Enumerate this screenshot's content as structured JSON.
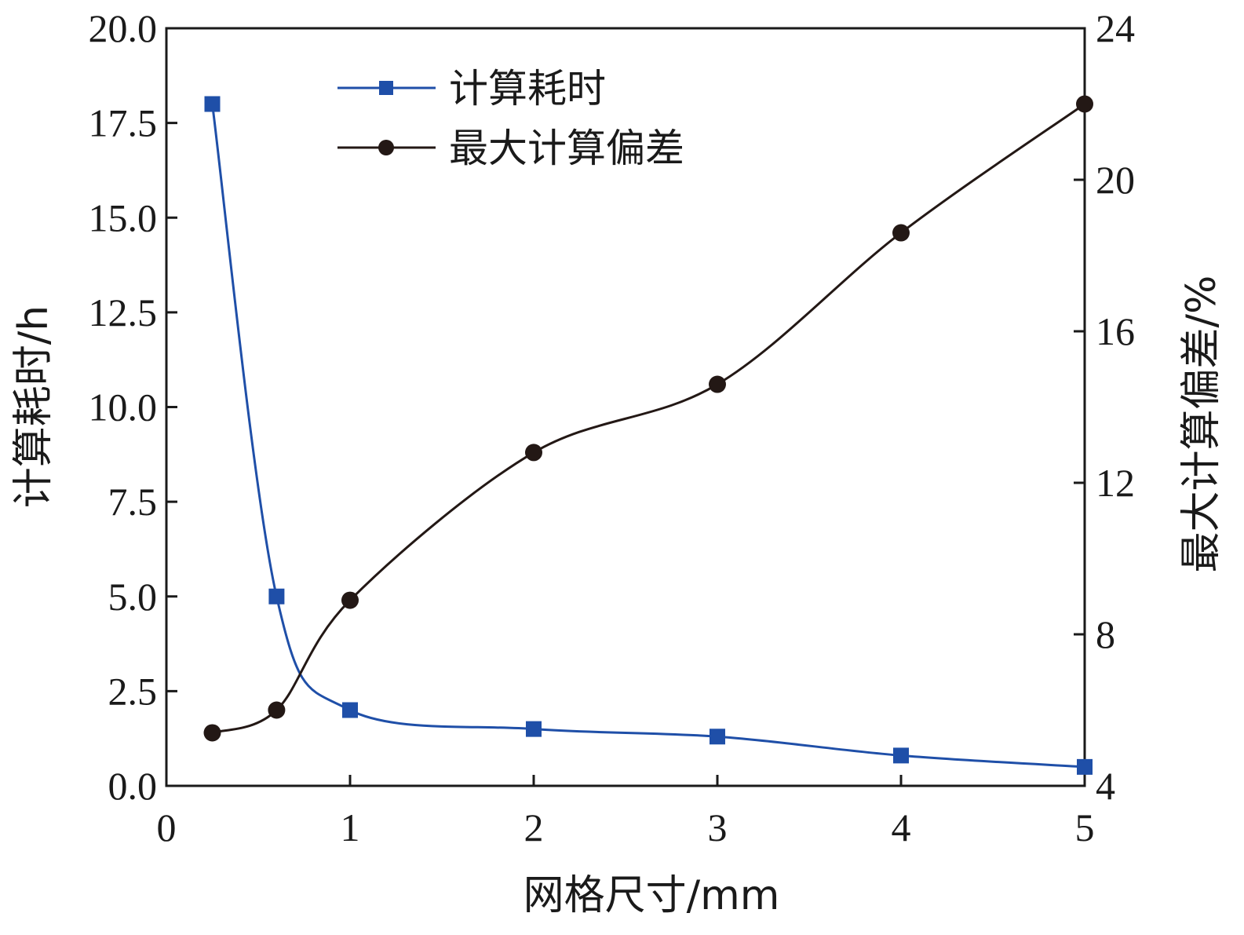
{
  "chart_data": {
    "type": "line",
    "xlabel": "网格尺寸/mm",
    "ylabel": "计算耗时/h",
    "y2label": "最大计算偏差/%",
    "xlim": [
      0,
      5
    ],
    "ylim": [
      0,
      20
    ],
    "y2lim": [
      4,
      24
    ],
    "x_ticks": [
      "0",
      "1",
      "2",
      "3",
      "4",
      "5"
    ],
    "y_ticks": [
      "0.0",
      "2.5",
      "5.0",
      "7.5",
      "10.0",
      "12.5",
      "15.0",
      "17.5",
      "20.0"
    ],
    "y2_ticks": [
      "4",
      "8",
      "12",
      "16",
      "20",
      "24"
    ],
    "grid": false,
    "legend_position": "top-center",
    "series": [
      {
        "name": "计算耗时",
        "axis": "left",
        "marker": "square",
        "color": "#1f4fa8",
        "x": [
          0.25,
          0.6,
          1,
          2,
          3,
          4,
          5
        ],
        "y": [
          18.0,
          5.0,
          2.0,
          1.5,
          1.3,
          0.8,
          0.5
        ]
      },
      {
        "name": "最大计算偏差",
        "axis": "right",
        "marker": "circle",
        "color": "#231815",
        "x": [
          0.25,
          0.6,
          1,
          2,
          3,
          4,
          5
        ],
        "y": [
          5.4,
          6.0,
          8.9,
          12.8,
          14.6,
          18.6,
          22.0
        ]
      }
    ]
  }
}
